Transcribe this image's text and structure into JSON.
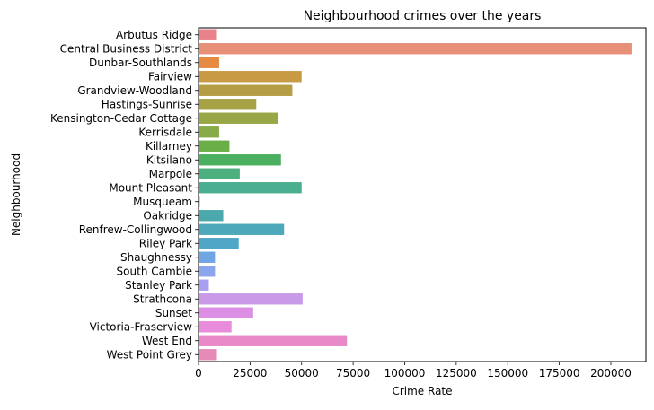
{
  "chart_data": {
    "type": "bar",
    "orientation": "horizontal",
    "title": "Neighbourhood crimes over the years",
    "xlabel": "Crime Rate",
    "ylabel": "Neighbourhood",
    "xlim": [
      0,
      217000
    ],
    "xticks": [
      0,
      25000,
      50000,
      75000,
      100000,
      125000,
      150000,
      175000,
      200000
    ],
    "grid": false,
    "categories": [
      "Arbutus Ridge",
      "Central Business District",
      "Dunbar-Southlands",
      "Fairview",
      "Grandview-Woodland",
      "Hastings-Sunrise",
      "Kensington-Cedar Cottage",
      "Kerrisdale",
      "Killarney",
      "Kitsilano",
      "Marpole",
      "Mount Pleasant",
      "Musqueam",
      "Oakridge",
      "Renfrew-Collingwood",
      "Riley Park",
      "Shaughnessy",
      "South Cambie",
      "Stanley Park",
      "Strathcona",
      "Sunset",
      "Victoria-Fraserview",
      "West End",
      "West Point Grey"
    ],
    "values": [
      8500,
      210000,
      10000,
      50000,
      45500,
      28000,
      38500,
      10000,
      15000,
      40000,
      20000,
      50000,
      600,
      12000,
      41500,
      19500,
      8000,
      8000,
      5000,
      50500,
      26500,
      16000,
      72000,
      8500
    ],
    "colors": [
      "#e9818a",
      "#e88f78",
      "#e48a42",
      "#c99a44",
      "#b49d44",
      "#a7a245",
      "#99a646",
      "#86ab47",
      "#6aaf48",
      "#4bb161",
      "#4bb07e",
      "#4aae91",
      "#4baba0",
      "#4ba9ad",
      "#4da8b9",
      "#50a6c7",
      "#6fa6e4",
      "#8ba6ec",
      "#a99ff0",
      "#c89ae8",
      "#dc8de4",
      "#e98bdb",
      "#e889c8",
      "#e68ab8"
    ]
  }
}
